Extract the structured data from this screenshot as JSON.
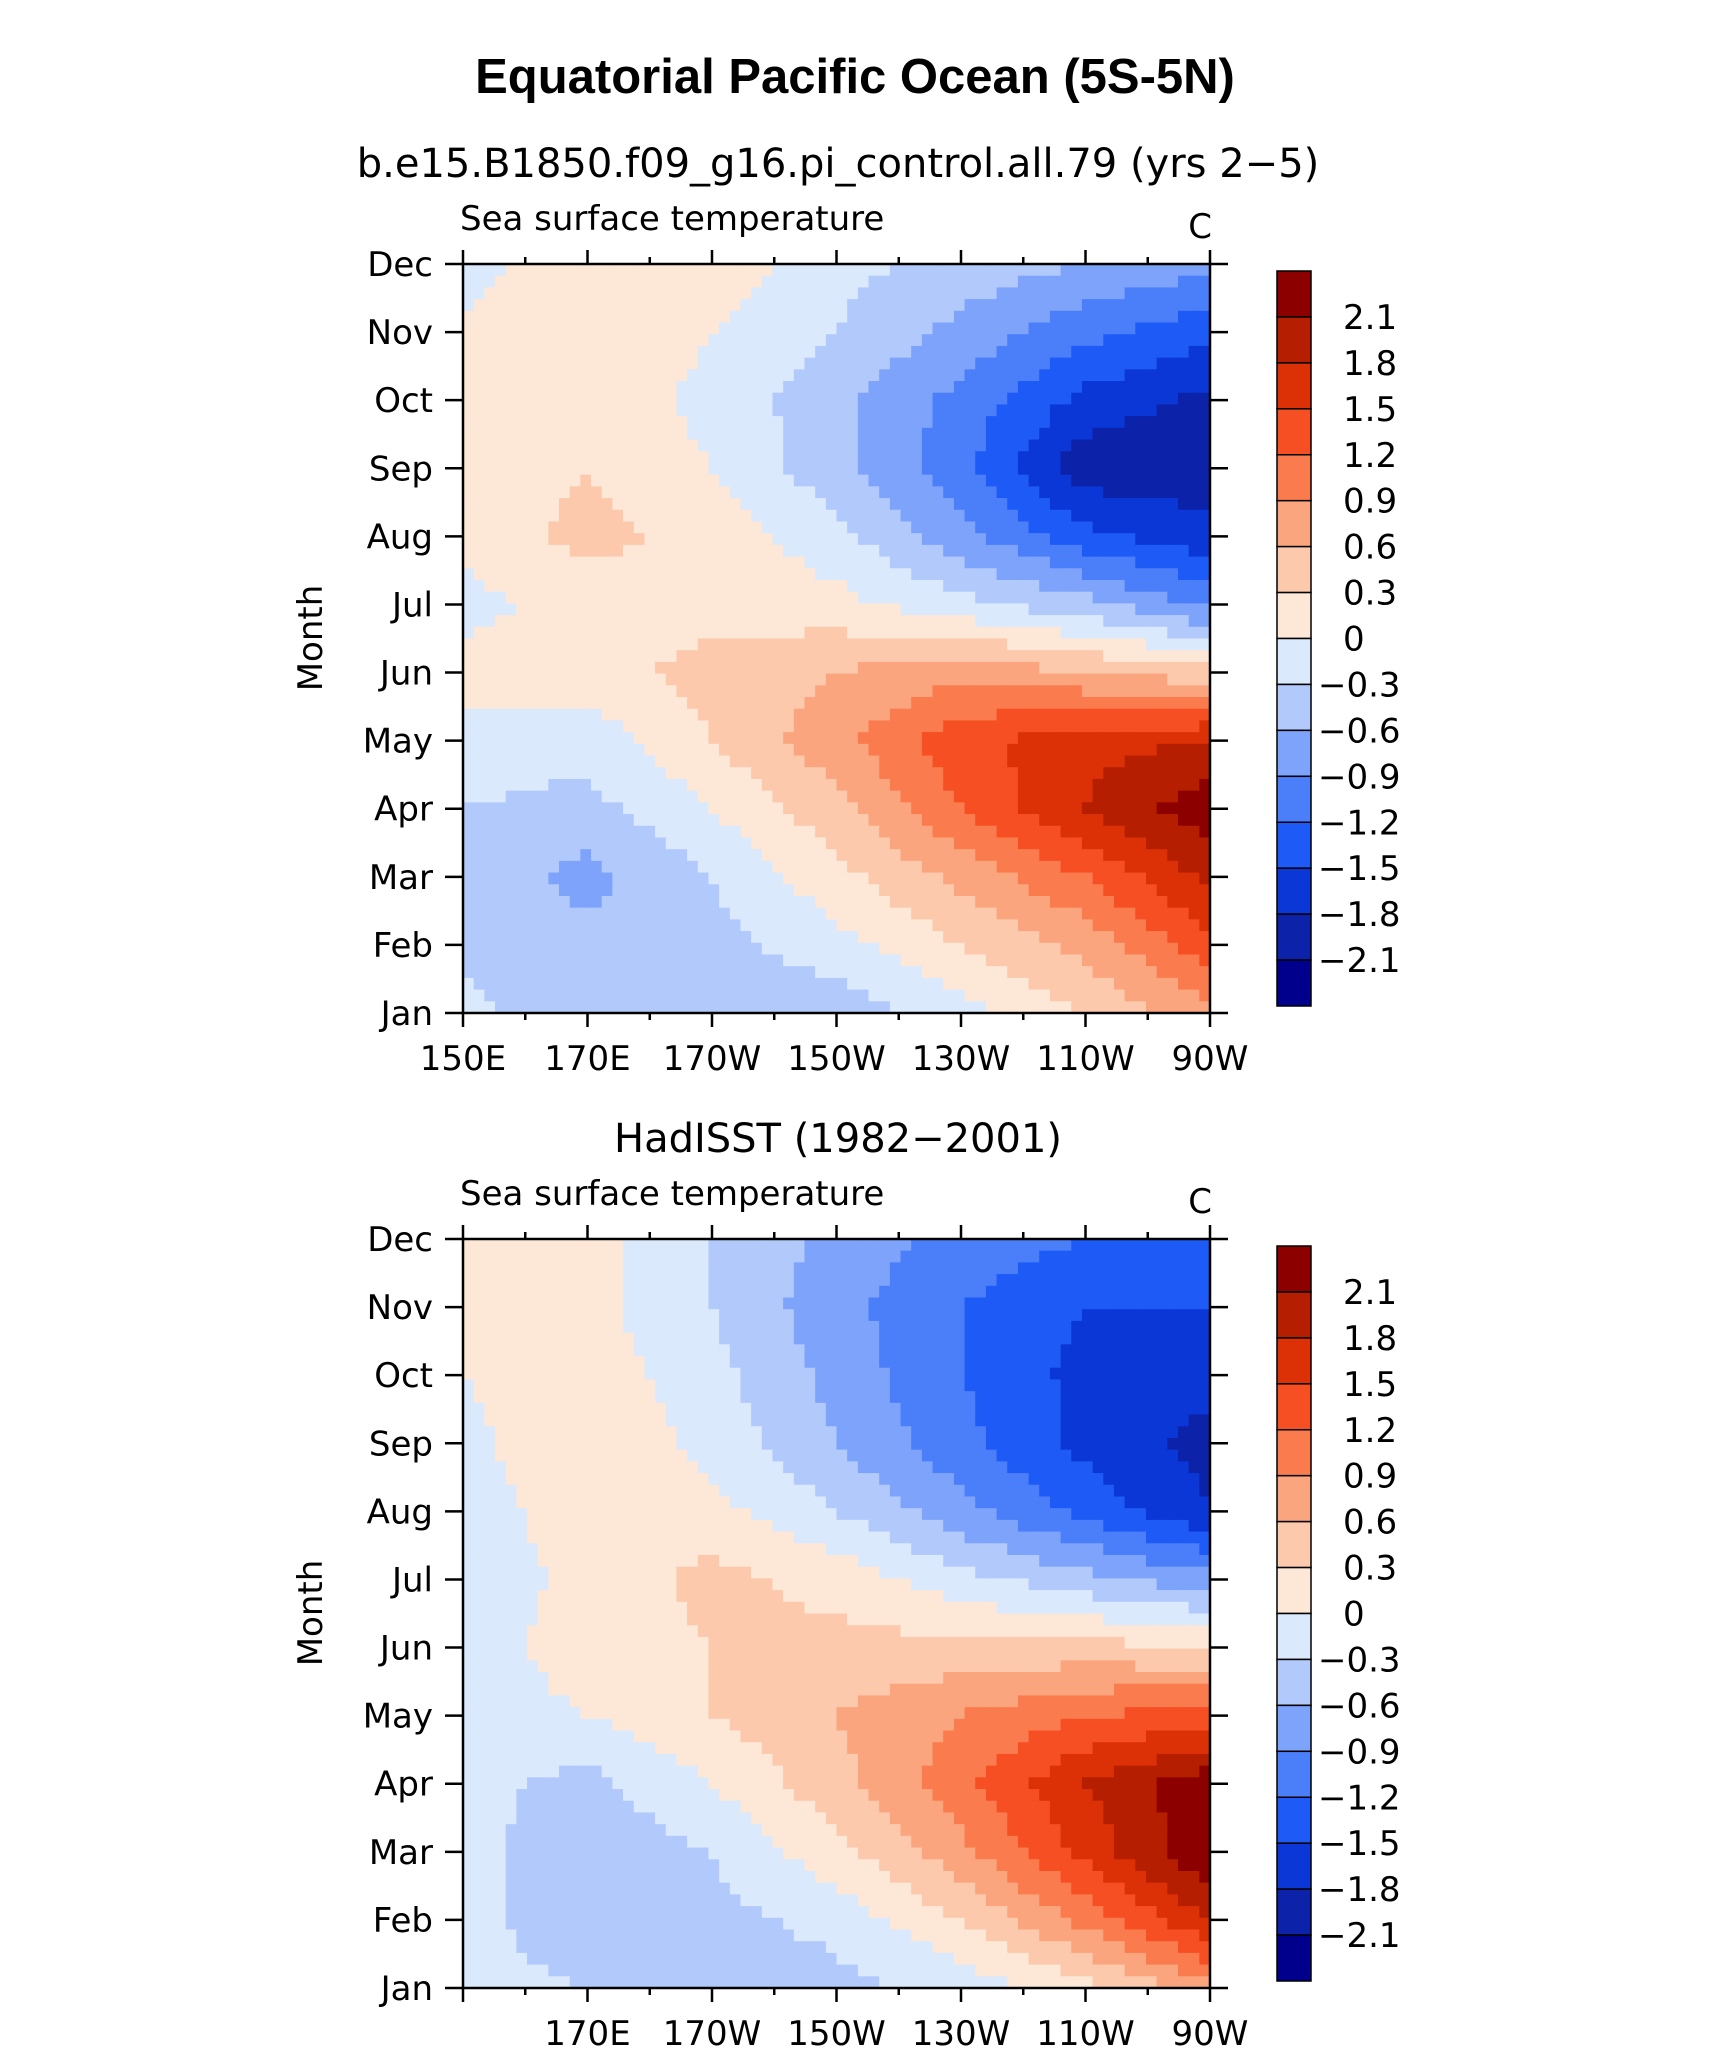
{
  "figure": {
    "title": "Equatorial Pacific Ocean (5S-5N)"
  },
  "colors": {
    "levels": [
      "#00008c",
      "#0c22a8",
      "#0a37d6",
      "#1e5af5",
      "#4b7ef9",
      "#7ea3fb",
      "#b2c9fc",
      "#dbe9fd",
      "#fde7d7",
      "#fcc9ad",
      "#fba57e",
      "#fa7c4e",
      "#f54f23",
      "#dc3006",
      "#b51f00",
      "#8c0000"
    ]
  },
  "chart_data": [
    {
      "type": "contour",
      "title": "b.e15.B1850.f09_g16.pi_control.all.79 (yrs 2−5)",
      "left_label": "Sea surface temperature",
      "right_label": "C",
      "ylabel": "Month",
      "xlabel": "",
      "x_tick_labels": [
        "150E",
        "170E",
        "170W",
        "150W",
        "130W",
        "110W",
        "90W"
      ],
      "x_tick_values": [
        150,
        170,
        190,
        210,
        230,
        250,
        270
      ],
      "xlim": [
        150,
        270
      ],
      "y_tick_labels": [
        "Jan",
        "Feb",
        "Mar",
        "Apr",
        "May",
        "Jun",
        "Jul",
        "Aug",
        "Sep",
        "Oct",
        "Nov",
        "Dec"
      ],
      "ylim": [
        1,
        12
      ],
      "colorbar_levels": [
        -2.1,
        -1.8,
        -1.5,
        -1.2,
        -0.9,
        -0.6,
        -0.3,
        0,
        0.3,
        0.6,
        0.9,
        1.2,
        1.5,
        1.8,
        2.1
      ],
      "colorbar_labels": [
        "2.1",
        "1.8",
        "1.5",
        "1.2",
        "0.9",
        "0.6",
        "0.3",
        "0",
        "−0.3",
        "−0.6",
        "−0.9",
        "−1.2",
        "−1.5",
        "−1.8",
        "−2.1"
      ],
      "field": {
        "lon": [
          150,
          170,
          190,
          210,
          230,
          250,
          270
        ],
        "months": [
          1,
          2,
          3,
          4,
          5,
          6,
          7,
          8,
          9,
          10,
          11,
          12
        ],
        "values": [
          [
            -0.2,
            -0.5,
            -0.6,
            -0.5,
            -0.1,
            0.3,
            0.8
          ],
          [
            -0.4,
            -0.5,
            -0.4,
            -0.1,
            0.3,
            0.7,
            1.4
          ],
          [
            -0.4,
            -0.7,
            -0.3,
            0.2,
            0.7,
            1.2,
            1.9
          ],
          [
            -0.3,
            -0.4,
            0.0,
            0.5,
            1.2,
            1.8,
            2.3
          ],
          [
            -0.1,
            -0.2,
            0.3,
            0.8,
            1.4,
            1.7,
            1.8
          ],
          [
            0.1,
            0.2,
            0.4,
            0.6,
            0.8,
            0.6,
            0.4
          ],
          [
            -0.1,
            0.1,
            0.2,
            0.1,
            -0.2,
            -0.5,
            -1.0
          ],
          [
            0.1,
            0.4,
            0.2,
            -0.2,
            -0.8,
            -1.4,
            -1.7
          ],
          [
            0.1,
            0.3,
            0.0,
            -0.5,
            -1.1,
            -2.0,
            -2.0
          ],
          [
            0.2,
            0.2,
            -0.1,
            -0.5,
            -1.0,
            -1.6,
            -1.9
          ],
          [
            0.1,
            0.3,
            0.0,
            -0.3,
            -0.7,
            -1.1,
            -1.4
          ],
          [
            -0.2,
            0.3,
            0.2,
            -0.2,
            -0.4,
            -0.6,
            -0.8
          ]
        ]
      }
    },
    {
      "type": "contour",
      "title": "HadISST (1982−2001)",
      "left_label": "Sea surface temperature",
      "right_label": "C",
      "ylabel": "Month",
      "xlabel": "",
      "x_tick_labels": [
        "170E",
        "170W",
        "150W",
        "130W",
        "110W",
        "90W"
      ],
      "x_tick_values": [
        170,
        190,
        210,
        230,
        250,
        270
      ],
      "xlim": [
        150,
        270
      ],
      "y_tick_labels": [
        "Jan",
        "Feb",
        "Mar",
        "Apr",
        "May",
        "Jun",
        "Jul",
        "Aug",
        "Sep",
        "Oct",
        "Nov",
        "Dec"
      ],
      "ylim": [
        1,
        12
      ],
      "colorbar_levels": [
        -2.1,
        -1.8,
        -1.5,
        -1.2,
        -0.9,
        -0.6,
        -0.3,
        0,
        0.3,
        0.6,
        0.9,
        1.2,
        1.5,
        1.8,
        2.1
      ],
      "colorbar_labels": [
        "2.1",
        "1.8",
        "1.5",
        "1.2",
        "0.9",
        "0.6",
        "0.3",
        "0",
        "−0.3",
        "−0.6",
        "−0.9",
        "−1.2",
        "−1.5",
        "−1.8",
        "−2.1"
      ],
      "field": {
        "lon": [
          150,
          170,
          190,
          210,
          230,
          250,
          270
        ],
        "months": [
          1,
          2,
          3,
          4,
          5,
          6,
          7,
          8,
          9,
          10,
          11,
          12
        ],
        "values": [
          [
            -0.2,
            -0.3,
            -0.5,
            -0.4,
            -0.2,
            0.2,
            0.8
          ],
          [
            -0.2,
            -0.5,
            -0.4,
            -0.2,
            0.3,
            1.0,
            1.8
          ],
          [
            -0.2,
            -0.5,
            -0.3,
            0.2,
            0.8,
            1.6,
            2.4
          ],
          [
            -0.2,
            -0.4,
            0.0,
            0.5,
            1.1,
            1.8,
            2.3
          ],
          [
            -0.1,
            0.0,
            0.3,
            0.6,
            0.9,
            1.2,
            1.3
          ],
          [
            -0.1,
            0.1,
            0.3,
            0.4,
            0.4,
            0.4,
            0.3
          ],
          [
            -0.2,
            0.1,
            0.4,
            0.2,
            -0.2,
            -0.5,
            -0.8
          ],
          [
            -0.2,
            0.2,
            0.1,
            -0.3,
            -0.8,
            -1.3,
            -1.8
          ],
          [
            -0.1,
            0.3,
            -0.1,
            -0.6,
            -1.1,
            -1.6,
            -1.9
          ],
          [
            0.0,
            0.2,
            -0.2,
            -0.7,
            -1.2,
            -1.6,
            -1.7
          ],
          [
            0.1,
            0.1,
            -0.3,
            -0.8,
            -1.2,
            -1.5,
            -1.5
          ],
          [
            0.1,
            0.1,
            -0.3,
            -0.7,
            -1.0,
            -1.2,
            -1.2
          ]
        ]
      }
    }
  ]
}
